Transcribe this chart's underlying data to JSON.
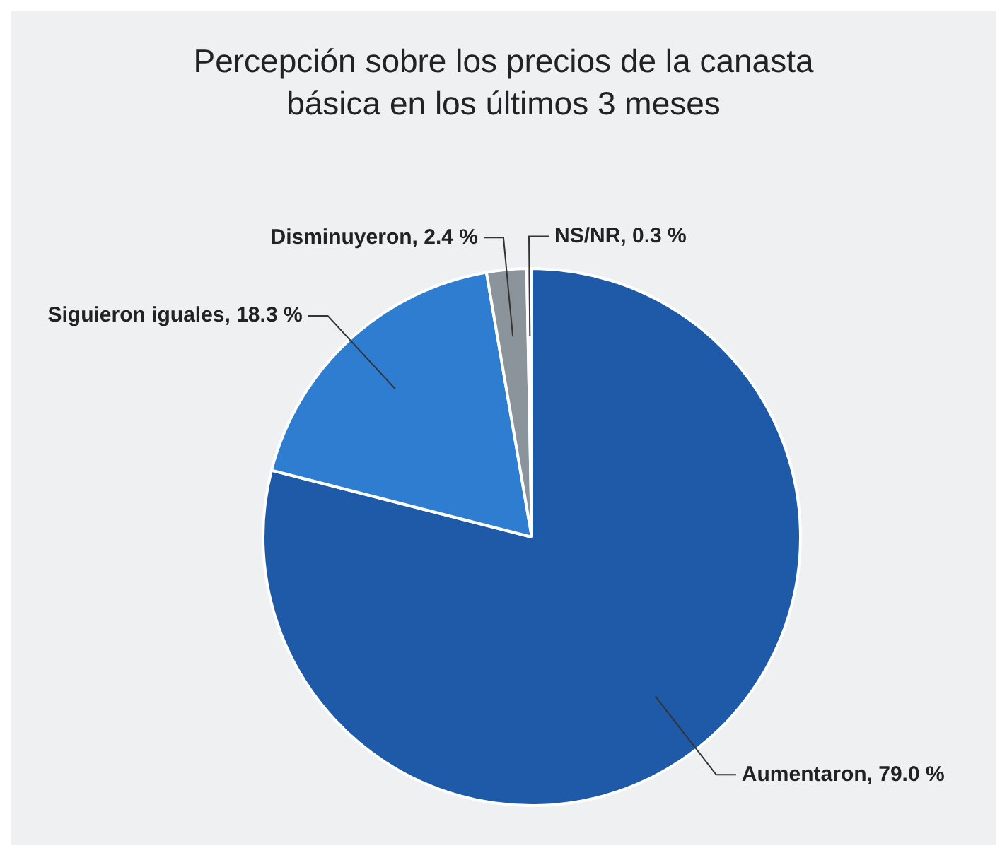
{
  "chart_data": {
    "type": "pie",
    "title": "Percepción sobre los precios de la canasta básica en los últimos 3 meses",
    "categories": [
      "Aumentaron",
      "Siguieron iguales",
      "Disminuyeron",
      "NS/NR"
    ],
    "values": [
      79.0,
      18.3,
      2.4,
      0.3
    ],
    "colors": [
      "#1f5aa8",
      "#2e7dd1",
      "#8c949b",
      "#d9dde0"
    ],
    "value_labels": [
      "79.0 %",
      "18.3 %",
      "2.4 %",
      "0.3 %"
    ],
    "legend": false
  }
}
